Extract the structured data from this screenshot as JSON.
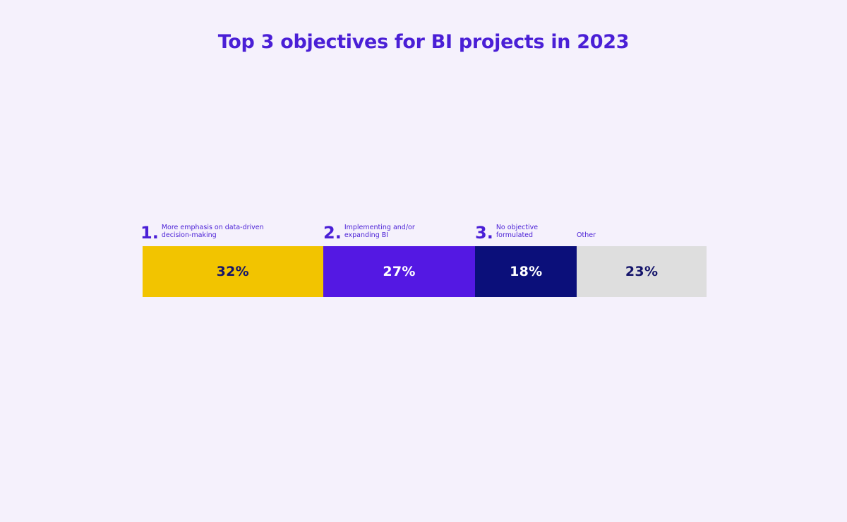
{
  "chart_data": {
    "type": "bar",
    "title": "Top 3 objectives for BI projects in 2023",
    "categories": [
      "More emphasis on data-driven decision-making",
      "Implementing and/or expanding BI",
      "No objective formulated",
      "Other"
    ],
    "ranks": [
      "1.",
      "2.",
      "3.",
      ""
    ],
    "label_lines": [
      "More emphasis on data-driven\ndecision-making",
      "Implementing and/or\nexpanding BI",
      "No objective\nformulated",
      "Other"
    ],
    "values": [
      32,
      27,
      18,
      23
    ],
    "value_labels": [
      "32%",
      "27%",
      "18%",
      "23%"
    ],
    "colors": [
      "#f2c400",
      "#5418e3",
      "#0b0f7a",
      "#dedede"
    ],
    "text_colors": [
      "#14146a",
      "#ffffff",
      "#ffffff",
      "#14146a"
    ],
    "stacked": true,
    "orientation": "horizontal",
    "xlim": [
      0,
      100
    ],
    "grid": false,
    "legend": "none"
  }
}
